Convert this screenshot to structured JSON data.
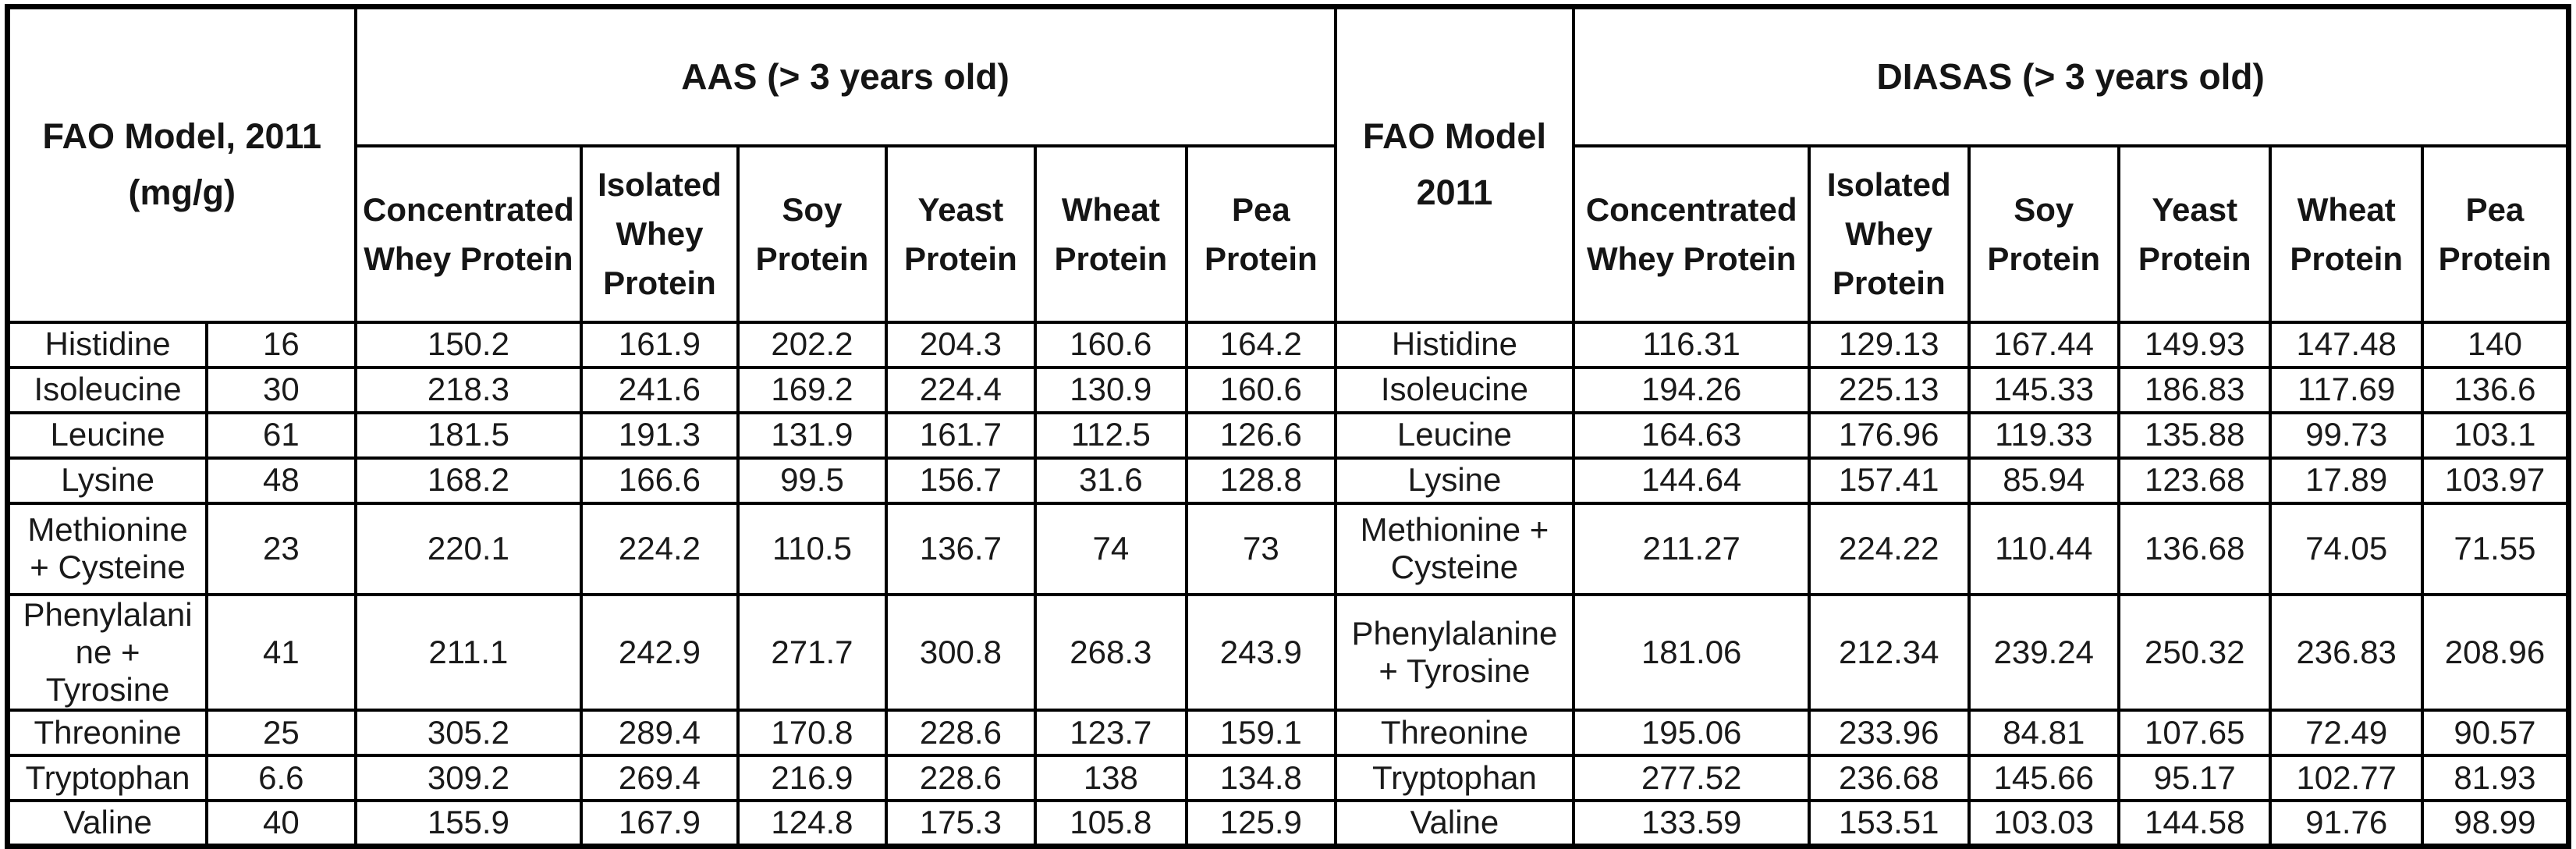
{
  "chart_data": {
    "type": "table",
    "corner_header": "FAO Model, 2011 (mg/g)",
    "aas_header": "AAS (> 3 years old)",
    "mid_header": "FAO Model 2011",
    "diasas_header": "DIASAS (> 3 years old)",
    "protein_columns": [
      "Concentrated Whey Protein",
      "Isolated Whey Protein",
      "Soy Protein",
      "Yeast Protein",
      "Wheat Protein",
      "Pea Protein"
    ],
    "rows": [
      {
        "amino_acid": "Histidine",
        "fao_value": "16",
        "aas": [
          "150.2",
          "161.9",
          "202.2",
          "204.3",
          "160.6",
          "164.2"
        ],
        "diasas": [
          "116.31",
          "129.13",
          "167.44",
          "149.93",
          "147.48",
          "140"
        ]
      },
      {
        "amino_acid": "Isoleucine",
        "fao_value": "30",
        "aas": [
          "218.3",
          "241.6",
          "169.2",
          "224.4",
          "130.9",
          "160.6"
        ],
        "diasas": [
          "194.26",
          "225.13",
          "145.33",
          "186.83",
          "117.69",
          "136.6"
        ]
      },
      {
        "amino_acid": "Leucine",
        "fao_value": "61",
        "aas": [
          "181.5",
          "191.3",
          "131.9",
          "161.7",
          "112.5",
          "126.6"
        ],
        "diasas": [
          "164.63",
          "176.96",
          "119.33",
          "135.88",
          "99.73",
          "103.1"
        ]
      },
      {
        "amino_acid": "Lysine",
        "fao_value": "48",
        "aas": [
          "168.2",
          "166.6",
          "99.5",
          "156.7",
          "31.6",
          "128.8"
        ],
        "diasas": [
          "144.64",
          "157.41",
          "85.94",
          "123.68",
          "17.89",
          "103.97"
        ]
      },
      {
        "amino_acid": "Methionine + Cysteine",
        "fao_value": "23",
        "aas": [
          "220.1",
          "224.2",
          "110.5",
          "136.7",
          "74",
          "73"
        ],
        "diasas": [
          "211.27",
          "224.22",
          "110.44",
          "136.68",
          "74.05",
          "71.55"
        ]
      },
      {
        "amino_acid": "Phenylalanine + Tyrosine",
        "fao_value": "41",
        "aas": [
          "211.1",
          "242.9",
          "271.7",
          "300.8",
          "268.3",
          "243.9"
        ],
        "diasas": [
          "181.06",
          "212.34",
          "239.24",
          "250.32",
          "236.83",
          "208.96"
        ]
      },
      {
        "amino_acid": "Threonine",
        "fao_value": "25",
        "aas": [
          "305.2",
          "289.4",
          "170.8",
          "228.6",
          "123.7",
          "159.1"
        ],
        "diasas": [
          "195.06",
          "233.96",
          "84.81",
          "107.65",
          "72.49",
          "90.57"
        ]
      },
      {
        "amino_acid": "Tryptophan",
        "fao_value": "6.6",
        "aas": [
          "309.2",
          "269.4",
          "216.9",
          "228.6",
          "138",
          "134.8"
        ],
        "diasas": [
          "277.52",
          "236.68",
          "145.66",
          "95.17",
          "102.77",
          "81.93"
        ]
      },
      {
        "amino_acid": "Valine",
        "fao_value": "40",
        "aas": [
          "155.9",
          "167.9",
          "124.8",
          "175.3",
          "105.8",
          "125.9"
        ],
        "diasas": [
          "133.59",
          "153.51",
          "103.03",
          "144.58",
          "91.76",
          "98.99"
        ]
      }
    ]
  }
}
